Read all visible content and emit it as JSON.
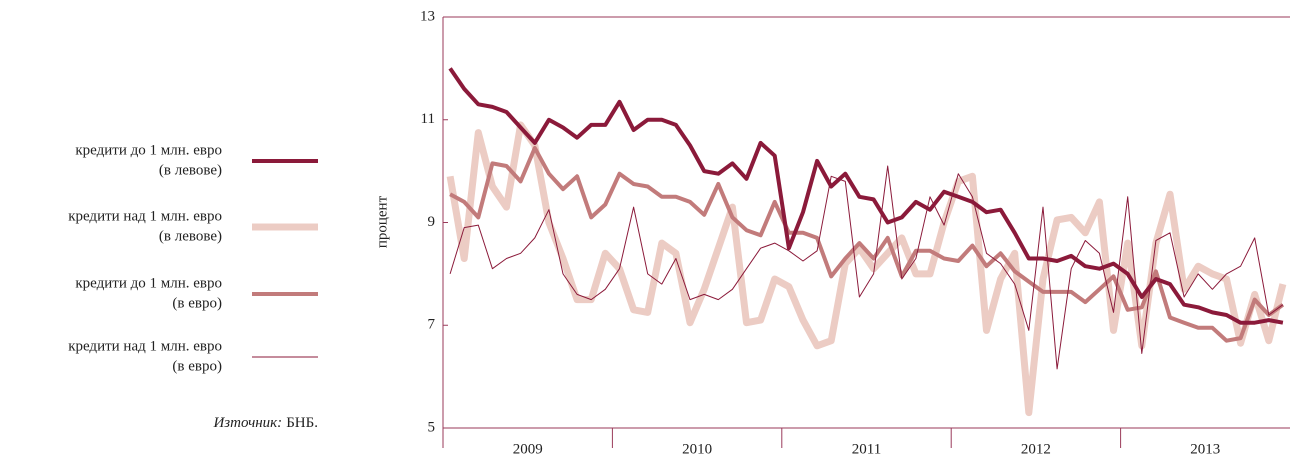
{
  "chart_data": {
    "type": "line",
    "y_label": "процент",
    "source": {
      "label": "Източник:",
      "text": "БНБ."
    },
    "x_labels": [
      "2009",
      "2010",
      "2011",
      "2012",
      "2013"
    ],
    "months_per_label": 12,
    "ylim": [
      5,
      13
    ],
    "yticks": [
      5,
      7,
      9,
      11,
      13
    ],
    "series": [
      {
        "name": [
          "кредити до 1 млн. евро",
          "(в левове)"
        ],
        "color": "#8b1a3a",
        "width": 4,
        "values": [
          12.0,
          11.6,
          11.3,
          11.25,
          11.15,
          10.85,
          10.55,
          11.0,
          10.85,
          10.65,
          10.9,
          10.9,
          11.35,
          10.8,
          11.0,
          11.0,
          10.9,
          10.5,
          10.0,
          9.95,
          10.15,
          9.85,
          10.55,
          10.3,
          8.5,
          9.2,
          10.2,
          9.7,
          9.95,
          9.5,
          9.45,
          9.0,
          9.1,
          9.4,
          9.25,
          9.6,
          9.5,
          9.4,
          9.2,
          9.25,
          8.8,
          8.3,
          8.3,
          8.25,
          8.35,
          8.15,
          8.1,
          8.2,
          8.0,
          7.55,
          7.9,
          7.8,
          7.4,
          7.35,
          7.25,
          7.2,
          7.05,
          7.05,
          7.1,
          7.05
        ]
      },
      {
        "name": [
          "кредити над 1 млн. евро",
          "(в левове)"
        ],
        "color": "#ecccc4",
        "width": 7,
        "values": [
          9.9,
          8.3,
          10.75,
          9.7,
          9.3,
          10.9,
          10.5,
          9.0,
          8.3,
          7.5,
          7.5,
          8.4,
          8.1,
          7.3,
          7.25,
          8.6,
          8.4,
          7.05,
          7.7,
          8.5,
          9.3,
          7.05,
          7.1,
          7.9,
          7.75,
          7.1,
          6.6,
          6.7,
          8.2,
          8.5,
          8.1,
          8.4,
          8.7,
          8.0,
          8.0,
          9.0,
          9.8,
          9.9,
          6.9,
          7.9,
          8.4,
          5.3,
          7.9,
          9.05,
          9.1,
          8.8,
          9.4,
          6.9,
          8.6,
          6.6,
          8.6,
          9.55,
          7.7,
          8.15,
          8.0,
          7.9,
          6.65,
          7.6,
          6.7,
          7.8
        ]
      },
      {
        "name": [
          "кредити до 1 млн. евро",
          "(в евро)"
        ],
        "color": "#c27b7b",
        "width": 4,
        "values": [
          9.55,
          9.4,
          9.1,
          10.15,
          10.1,
          9.8,
          10.45,
          9.95,
          9.65,
          9.9,
          9.1,
          9.35,
          9.95,
          9.75,
          9.7,
          9.5,
          9.5,
          9.4,
          9.15,
          9.75,
          9.1,
          8.85,
          8.75,
          9.4,
          8.8,
          8.8,
          8.7,
          7.95,
          8.3,
          8.6,
          8.3,
          8.7,
          7.95,
          8.45,
          8.45,
          8.3,
          8.25,
          8.55,
          8.15,
          8.4,
          8.05,
          7.85,
          7.65,
          7.65,
          7.65,
          7.45,
          7.7,
          7.95,
          7.3,
          7.35,
          8.05,
          7.15,
          7.05,
          6.95,
          6.95,
          6.7,
          6.75,
          7.5,
          7.2,
          7.4
        ]
      },
      {
        "name": [
          "кредити над 1 млн. евро",
          "(в евро)"
        ],
        "color": "#8b1a3a",
        "width": 1,
        "values": [
          8.0,
          8.9,
          8.95,
          8.1,
          8.3,
          8.4,
          8.7,
          9.25,
          8.0,
          7.6,
          7.5,
          7.7,
          8.1,
          9.3,
          8.0,
          7.8,
          8.3,
          7.5,
          7.6,
          7.5,
          7.7,
          8.1,
          8.5,
          8.6,
          8.45,
          8.25,
          8.45,
          9.9,
          9.8,
          7.55,
          8.0,
          10.1,
          7.9,
          8.3,
          9.5,
          8.95,
          9.95,
          9.5,
          8.4,
          8.2,
          7.8,
          6.9,
          9.3,
          6.15,
          8.1,
          8.65,
          8.4,
          7.25,
          9.5,
          6.45,
          8.65,
          8.8,
          7.55,
          8.0,
          7.7,
          8.0,
          8.15,
          8.7,
          7.2,
          7.4
        ]
      }
    ]
  }
}
